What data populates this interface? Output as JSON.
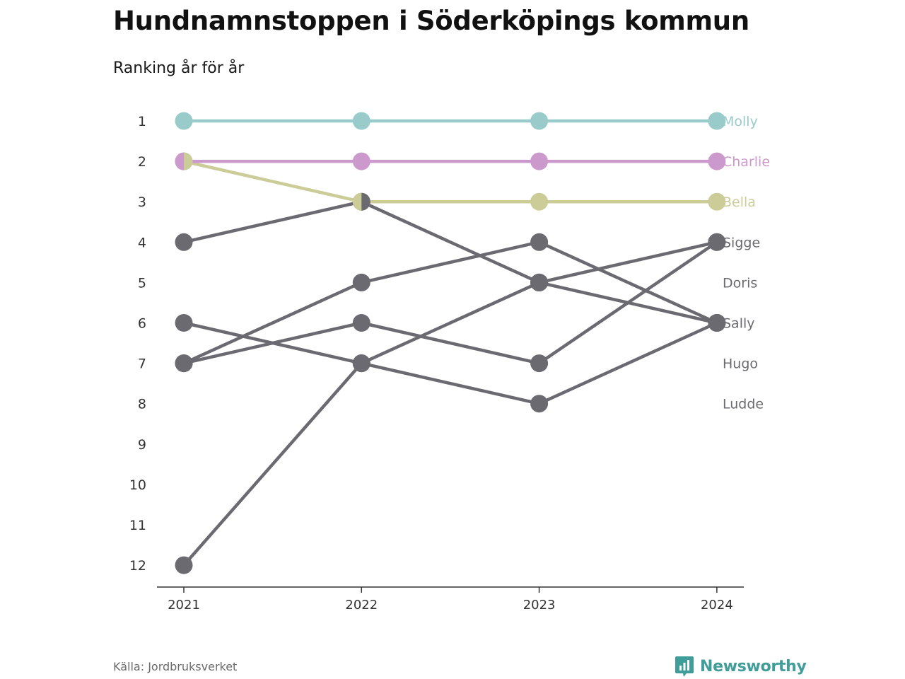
{
  "header": {
    "title": "Hundnamnstoppen i Söderköpings kommun",
    "subtitle": "Ranking år för år"
  },
  "footer": {
    "source": "Källa: Jordbruksverket",
    "brand": "Newsworthy"
  },
  "colors": {
    "Molly": "#98cbc9",
    "Charlie": "#cc99cc",
    "Bella": "#cccc99",
    "other": "#6b6a71",
    "axis": "#333333",
    "tick_text": "#333333",
    "brand": "#3f9e9a"
  },
  "chart_data": {
    "type": "line",
    "subtype": "bump",
    "x": [
      "2021",
      "2022",
      "2023",
      "2024"
    ],
    "y_ticks": [
      1,
      2,
      3,
      4,
      5,
      6,
      7,
      8,
      9,
      10,
      11,
      12
    ],
    "ylim": [
      12,
      1
    ],
    "y_reversed": true,
    "grid": false,
    "series": [
      {
        "name": "Molly",
        "ranks": [
          1,
          1,
          1,
          1
        ],
        "highlight": true
      },
      {
        "name": "Charlie",
        "ranks": [
          2,
          2,
          2,
          2
        ],
        "highlight": true
      },
      {
        "name": "Bella",
        "ranks": [
          2,
          3,
          3,
          3
        ],
        "highlight": true
      },
      {
        "name": "Sigge",
        "ranks": [
          7,
          6,
          7,
          4
        ],
        "highlight": false
      },
      {
        "name": "Doris",
        "ranks": [
          12,
          7,
          5,
          4
        ],
        "highlight": false
      },
      {
        "name": "Sally",
        "ranks": [
          4,
          3,
          5,
          6
        ],
        "highlight": false
      },
      {
        "name": "Hugo",
        "ranks": [
          6,
          7,
          8,
          6
        ],
        "highlight": false
      },
      {
        "name": "Ludde",
        "ranks": [
          7,
          5,
          4,
          6
        ],
        "highlight": false
      }
    ],
    "end_labels": [
      "Molly",
      "Charlie",
      "Bella",
      "Sigge",
      "Doris",
      "Sally",
      "Hugo",
      "Ludde"
    ]
  }
}
